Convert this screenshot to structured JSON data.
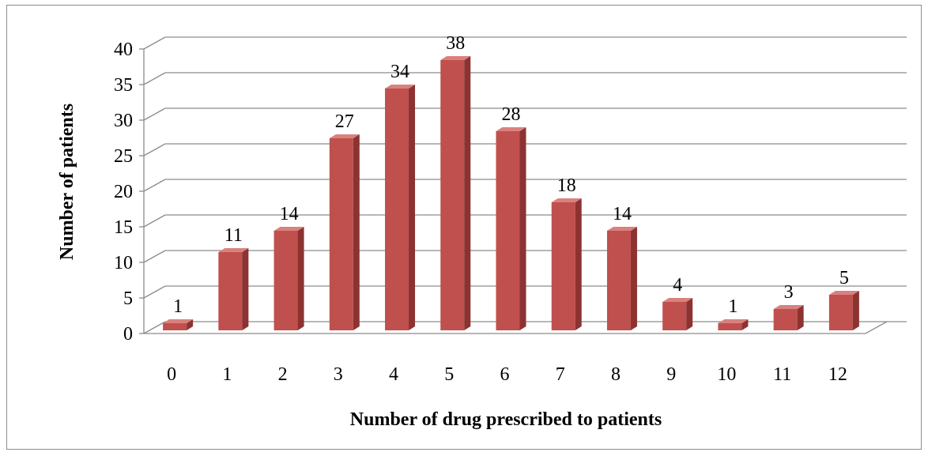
{
  "chart_data": {
    "type": "bar",
    "title": "",
    "xlabel": "Number of drug prescribed to  patients",
    "ylabel": "Number of patients",
    "categories": [
      "0",
      "1",
      "2",
      "3",
      "4",
      "5",
      "6",
      "7",
      "8",
      "9",
      "10",
      "11",
      "12"
    ],
    "values": [
      1,
      11,
      14,
      27,
      34,
      38,
      28,
      18,
      14,
      4,
      1,
      3,
      5
    ],
    "ylim": [
      0,
      40
    ],
    "yticks": [
      "0",
      "5",
      "10",
      "15",
      "20",
      "25",
      "30",
      "35",
      "40"
    ],
    "grid": true,
    "legend": "none",
    "three_d": true,
    "colors": {
      "bar_front": "#c0504d",
      "bar_side": "#8c3331",
      "bar_top": "#d9817f",
      "gridline": "#8c8c8c",
      "frame": "#8c8c8c"
    }
  }
}
